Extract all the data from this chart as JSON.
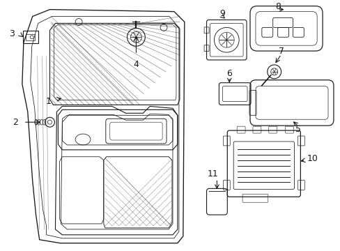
{
  "bg_color": "#ffffff",
  "line_color": "#1a1a1a",
  "figsize": [
    4.89,
    3.6
  ],
  "dpi": 100,
  "label_fontsize": 9
}
